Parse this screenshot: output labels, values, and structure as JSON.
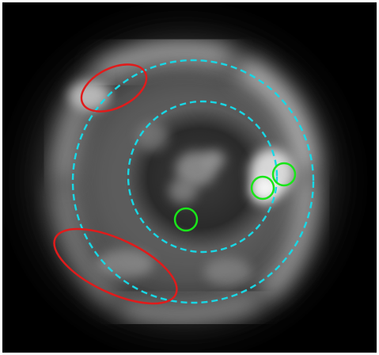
{
  "image": {
    "background_color": "#000000",
    "border_color": "#ffffff",
    "colors": {
      "dashed_ring": "#18d8e6",
      "ellipse": "#e11b1b",
      "small_circle": "#19e619",
      "glow": "#d9d9d9"
    },
    "elements": {
      "dashed_rings": 2,
      "red_ellipses": 2,
      "green_circles": 3
    }
  }
}
